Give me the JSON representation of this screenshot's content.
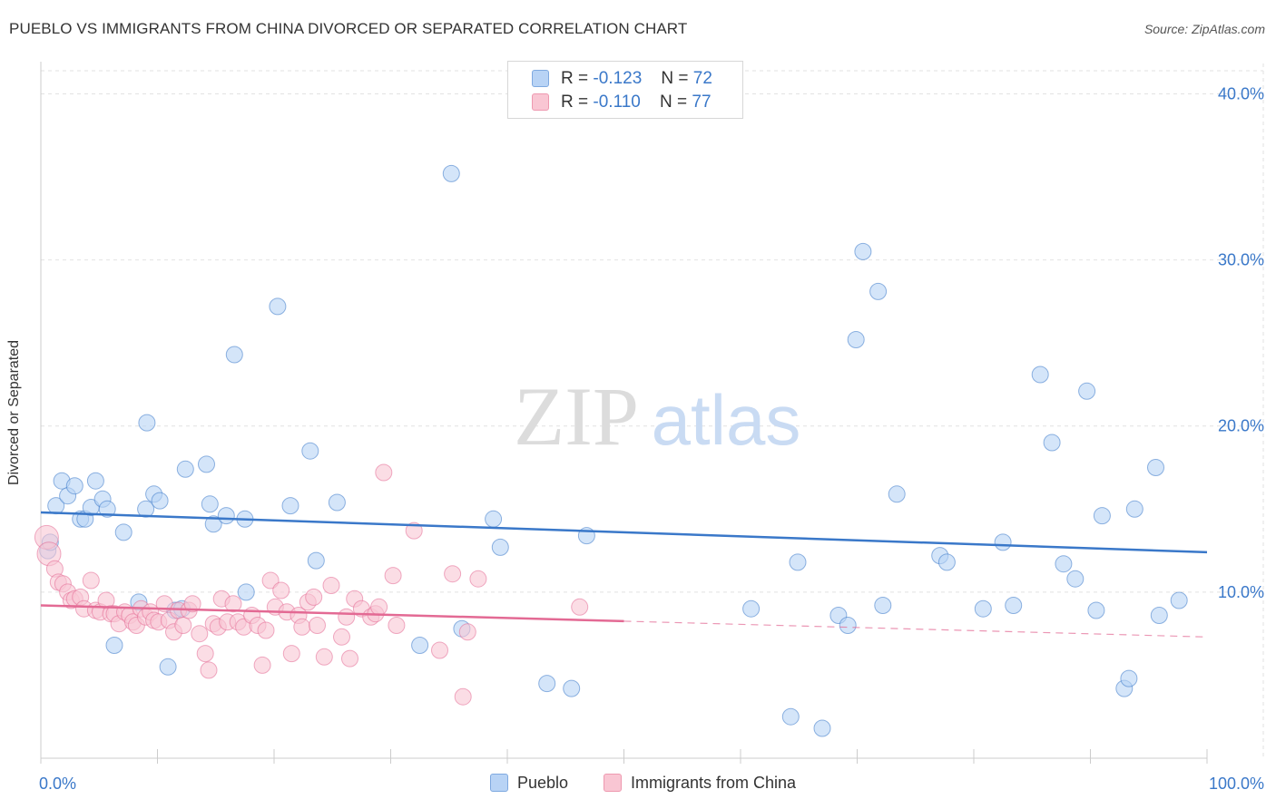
{
  "title": "PUEBLO VS IMMIGRANTS FROM CHINA DIVORCED OR SEPARATED CORRELATION CHART",
  "source": "Source: ZipAtlas.com",
  "watermark": {
    "zip": "ZIP",
    "atlas": "atlas"
  },
  "legend": {
    "r_label": "R =",
    "n_label": "N =",
    "items": [
      {
        "r": "-0.123",
        "n": "72",
        "fill": "#b8d3f5",
        "stroke": "#7fa9e0"
      },
      {
        "r": "-0.110",
        "n": "77",
        "fill": "#f9c6d3",
        "stroke": "#ee99b0"
      }
    ]
  },
  "chart_data": {
    "type": "scatter",
    "xlabel": "",
    "ylabel": "Divorced or Separated",
    "xlim": [
      0,
      100
    ],
    "ylim": [
      0,
      41.5
    ],
    "x_tick_labels": [
      "0.0%",
      "100.0%"
    ],
    "y_ticks": [
      10,
      20,
      30,
      40
    ],
    "y_tick_labels": [
      "10.0%",
      "20.0%",
      "30.0%",
      "40.0%"
    ],
    "grid": true,
    "legend_position": "bottom",
    "colors": {
      "blue": "#3a78c9",
      "pink": "#e36a94",
      "axis_text": "#3a78c9"
    },
    "series": [
      {
        "name": "Pueblo",
        "color": "#3a78c9",
        "fill": "#b8d3f5",
        "trend": {
          "x0": 0,
          "y0": 14.8,
          "x1": 100,
          "y1": 12.4,
          "dash_from": null
        },
        "points": [
          [
            0.6,
            12.5
          ],
          [
            1.3,
            15.2
          ],
          [
            1.8,
            16.7
          ],
          [
            2.3,
            15.8
          ],
          [
            2.9,
            16.4
          ],
          [
            3.4,
            14.4
          ],
          [
            3.8,
            14.4
          ],
          [
            4.3,
            15.1
          ],
          [
            4.7,
            16.7
          ],
          [
            5.3,
            15.6
          ],
          [
            5.7,
            15.0
          ],
          [
            6.3,
            6.8
          ],
          [
            7.1,
            13.6
          ],
          [
            8.4,
            9.4
          ],
          [
            9.0,
            15.0
          ],
          [
            9.1,
            20.2
          ],
          [
            9.7,
            15.9
          ],
          [
            10.2,
            15.5
          ],
          [
            10.9,
            5.5
          ],
          [
            11.5,
            8.9
          ],
          [
            12.1,
            9.0
          ],
          [
            12.4,
            17.4
          ],
          [
            14.2,
            17.7
          ],
          [
            14.5,
            15.3
          ],
          [
            14.8,
            14.1
          ],
          [
            15.9,
            14.6
          ],
          [
            16.6,
            24.3
          ],
          [
            17.5,
            14.4
          ],
          [
            17.6,
            10.0
          ],
          [
            20.3,
            27.2
          ],
          [
            21.4,
            15.2
          ],
          [
            23.1,
            18.5
          ],
          [
            23.6,
            11.9
          ],
          [
            25.4,
            15.4
          ],
          [
            32.5,
            6.8
          ],
          [
            35.2,
            35.2
          ],
          [
            36.1,
            7.8
          ],
          [
            38.8,
            14.4
          ],
          [
            39.4,
            12.7
          ],
          [
            43.4,
            4.5
          ],
          [
            45.5,
            4.2
          ],
          [
            46.8,
            13.4
          ],
          [
            60.9,
            9.0
          ],
          [
            64.3,
            2.5
          ],
          [
            64.9,
            11.8
          ],
          [
            67.0,
            1.8
          ],
          [
            68.4,
            8.6
          ],
          [
            69.2,
            8.0
          ],
          [
            69.9,
            25.2
          ],
          [
            70.5,
            30.5
          ],
          [
            71.8,
            28.1
          ],
          [
            72.2,
            9.2
          ],
          [
            73.4,
            15.9
          ],
          [
            77.1,
            12.2
          ],
          [
            77.7,
            11.8
          ],
          [
            80.8,
            9.0
          ],
          [
            82.5,
            13.0
          ],
          [
            83.4,
            9.2
          ],
          [
            85.7,
            23.1
          ],
          [
            86.7,
            19.0
          ],
          [
            87.7,
            11.7
          ],
          [
            88.7,
            10.8
          ],
          [
            89.7,
            22.1
          ],
          [
            90.5,
            8.9
          ],
          [
            91.0,
            14.6
          ],
          [
            92.9,
            4.2
          ],
          [
            93.3,
            4.8
          ],
          [
            93.8,
            15.0
          ],
          [
            95.6,
            17.5
          ],
          [
            95.9,
            8.6
          ],
          [
            97.6,
            9.5
          ],
          [
            0.8,
            13.0
          ]
        ]
      },
      {
        "name": "Immigrants from China",
        "color": "#e36a94",
        "fill": "#f9c6d3",
        "trend": {
          "x0": 0,
          "y0": 9.2,
          "x1": 100,
          "y1": 7.3,
          "dash_from": 50
        },
        "points": [
          [
            0.5,
            13.3
          ],
          [
            0.7,
            12.3
          ],
          [
            1.2,
            11.4
          ],
          [
            1.5,
            10.6
          ],
          [
            1.9,
            10.5
          ],
          [
            2.3,
            10.0
          ],
          [
            2.6,
            9.5
          ],
          [
            2.9,
            9.6
          ],
          [
            3.4,
            9.7
          ],
          [
            3.7,
            9.0
          ],
          [
            4.3,
            10.7
          ],
          [
            4.7,
            8.9
          ],
          [
            5.1,
            8.8
          ],
          [
            5.6,
            9.5
          ],
          [
            6.0,
            8.7
          ],
          [
            6.3,
            8.7
          ],
          [
            6.7,
            8.1
          ],
          [
            7.2,
            8.8
          ],
          [
            7.6,
            8.6
          ],
          [
            7.9,
            8.2
          ],
          [
            8.2,
            8.0
          ],
          [
            8.6,
            9.0
          ],
          [
            9.0,
            8.5
          ],
          [
            9.4,
            8.8
          ],
          [
            9.7,
            8.3
          ],
          [
            10.1,
            8.2
          ],
          [
            10.6,
            9.3
          ],
          [
            11.0,
            8.3
          ],
          [
            11.4,
            7.6
          ],
          [
            11.8,
            8.9
          ],
          [
            12.2,
            8.0
          ],
          [
            12.7,
            8.9
          ],
          [
            13.0,
            9.3
          ],
          [
            13.6,
            7.5
          ],
          [
            14.1,
            6.3
          ],
          [
            14.4,
            5.3
          ],
          [
            14.8,
            8.1
          ],
          [
            15.2,
            7.9
          ],
          [
            15.5,
            9.6
          ],
          [
            16.0,
            8.2
          ],
          [
            16.5,
            9.3
          ],
          [
            16.9,
            8.2
          ],
          [
            17.4,
            7.9
          ],
          [
            18.1,
            8.6
          ],
          [
            18.6,
            8.0
          ],
          [
            19.0,
            5.6
          ],
          [
            19.3,
            7.7
          ],
          [
            19.7,
            10.7
          ],
          [
            20.1,
            9.1
          ],
          [
            20.6,
            10.1
          ],
          [
            21.1,
            8.8
          ],
          [
            21.5,
            6.3
          ],
          [
            22.1,
            8.6
          ],
          [
            22.4,
            7.9
          ],
          [
            22.9,
            9.4
          ],
          [
            23.4,
            9.7
          ],
          [
            23.7,
            8.0
          ],
          [
            24.3,
            6.1
          ],
          [
            24.9,
            10.4
          ],
          [
            25.8,
            7.3
          ],
          [
            26.2,
            8.5
          ],
          [
            26.5,
            6.0
          ],
          [
            26.9,
            9.6
          ],
          [
            27.5,
            9.0
          ],
          [
            28.3,
            8.5
          ],
          [
            28.7,
            8.7
          ],
          [
            29.0,
            9.1
          ],
          [
            29.4,
            17.2
          ],
          [
            30.2,
            11.0
          ],
          [
            30.5,
            8.0
          ],
          [
            32.0,
            13.7
          ],
          [
            34.2,
            6.5
          ],
          [
            35.3,
            11.1
          ],
          [
            36.2,
            3.7
          ],
          [
            36.6,
            7.6
          ],
          [
            37.5,
            10.8
          ],
          [
            46.2,
            9.1
          ]
        ]
      }
    ]
  }
}
